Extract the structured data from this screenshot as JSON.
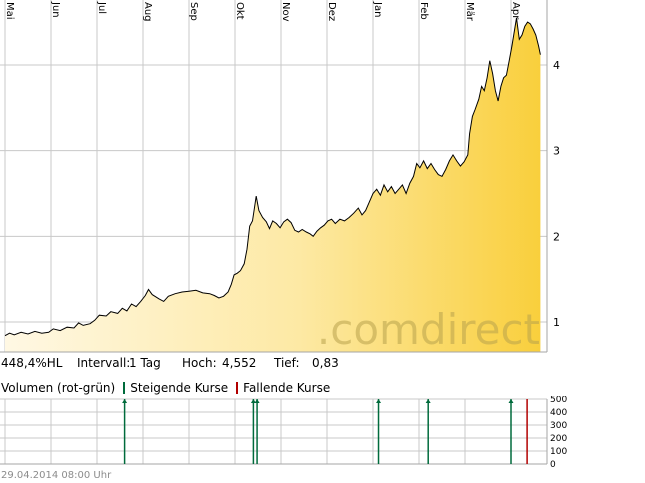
{
  "chart_data": [
    {
      "type": "area",
      "months": [
        "Mai",
        "Jun",
        "Jul",
        "Aug",
        "Sep",
        "Okt",
        "Nov",
        "Dez",
        "Jan",
        "Feb",
        "Mär",
        "Apr"
      ],
      "yticks": [
        "1",
        "2",
        "3",
        "4"
      ],
      "ylim": [
        0.65,
        4.7
      ],
      "series": [
        {
          "values": [
            [
              0,
              0.84
            ],
            [
              0.1,
              0.87
            ],
            [
              0.2,
              0.85
            ],
            [
              0.35,
              0.88
            ],
            [
              0.5,
              0.86
            ],
            [
              0.65,
              0.89
            ],
            [
              0.8,
              0.87
            ],
            [
              0.95,
              0.88
            ],
            [
              1.05,
              0.92
            ],
            [
              1.2,
              0.9
            ],
            [
              1.35,
              0.94
            ],
            [
              1.5,
              0.93
            ],
            [
              1.6,
              0.99
            ],
            [
              1.7,
              0.96
            ],
            [
              1.85,
              0.98
            ],
            [
              1.95,
              1.02
            ],
            [
              2.05,
              1.08
            ],
            [
              2.2,
              1.07
            ],
            [
              2.3,
              1.12
            ],
            [
              2.45,
              1.1
            ],
            [
              2.55,
              1.16
            ],
            [
              2.65,
              1.13
            ],
            [
              2.75,
              1.21
            ],
            [
              2.85,
              1.18
            ],
            [
              2.95,
              1.24
            ],
            [
              3.05,
              1.31
            ],
            [
              3.12,
              1.38
            ],
            [
              3.2,
              1.32
            ],
            [
              3.35,
              1.27
            ],
            [
              3.45,
              1.24
            ],
            [
              3.55,
              1.3
            ],
            [
              3.7,
              1.33
            ],
            [
              3.85,
              1.35
            ],
            [
              4.0,
              1.36
            ],
            [
              4.15,
              1.37
            ],
            [
              4.3,
              1.34
            ],
            [
              4.45,
              1.33
            ],
            [
              4.55,
              1.31
            ],
            [
              4.65,
              1.28
            ],
            [
              4.75,
              1.3
            ],
            [
              4.85,
              1.35
            ],
            [
              4.92,
              1.44
            ],
            [
              4.98,
              1.55
            ],
            [
              5.05,
              1.57
            ],
            [
              5.12,
              1.6
            ],
            [
              5.2,
              1.68
            ],
            [
              5.26,
              1.85
            ],
            [
              5.32,
              2.12
            ],
            [
              5.38,
              2.18
            ],
            [
              5.46,
              2.47
            ],
            [
              5.52,
              2.3
            ],
            [
              5.6,
              2.22
            ],
            [
              5.68,
              2.17
            ],
            [
              5.75,
              2.09
            ],
            [
              5.82,
              2.18
            ],
            [
              5.9,
              2.15
            ],
            [
              5.98,
              2.1
            ],
            [
              6.06,
              2.17
            ],
            [
              6.14,
              2.2
            ],
            [
              6.22,
              2.16
            ],
            [
              6.3,
              2.07
            ],
            [
              6.38,
              2.05
            ],
            [
              6.46,
              2.08
            ],
            [
              6.55,
              2.05
            ],
            [
              6.63,
              2.03
            ],
            [
              6.7,
              2.0
            ],
            [
              6.78,
              2.06
            ],
            [
              6.86,
              2.1
            ],
            [
              6.94,
              2.13
            ],
            [
              7.02,
              2.18
            ],
            [
              7.1,
              2.2
            ],
            [
              7.18,
              2.15
            ],
            [
              7.28,
              2.2
            ],
            [
              7.38,
              2.18
            ],
            [
              7.48,
              2.22
            ],
            [
              7.58,
              2.27
            ],
            [
              7.68,
              2.33
            ],
            [
              7.76,
              2.25
            ],
            [
              7.84,
              2.3
            ],
            [
              7.92,
              2.4
            ],
            [
              8.0,
              2.5
            ],
            [
              8.08,
              2.55
            ],
            [
              8.16,
              2.48
            ],
            [
              8.24,
              2.6
            ],
            [
              8.32,
              2.52
            ],
            [
              8.4,
              2.58
            ],
            [
              8.48,
              2.5
            ],
            [
              8.56,
              2.55
            ],
            [
              8.64,
              2.6
            ],
            [
              8.72,
              2.5
            ],
            [
              8.8,
              2.62
            ],
            [
              8.88,
              2.7
            ],
            [
              8.95,
              2.85
            ],
            [
              9.02,
              2.8
            ],
            [
              9.1,
              2.88
            ],
            [
              9.18,
              2.79
            ],
            [
              9.26,
              2.85
            ],
            [
              9.34,
              2.78
            ],
            [
              9.42,
              2.72
            ],
            [
              9.5,
              2.7
            ],
            [
              9.58,
              2.78
            ],
            [
              9.66,
              2.88
            ],
            [
              9.74,
              2.95
            ],
            [
              9.82,
              2.88
            ],
            [
              9.9,
              2.82
            ],
            [
              9.98,
              2.87
            ],
            [
              10.06,
              2.95
            ],
            [
              10.1,
              3.2
            ],
            [
              10.16,
              3.4
            ],
            [
              10.22,
              3.48
            ],
            [
              10.3,
              3.6
            ],
            [
              10.36,
              3.75
            ],
            [
              10.42,
              3.7
            ],
            [
              10.48,
              3.85
            ],
            [
              10.54,
              4.05
            ],
            [
              10.6,
              3.9
            ],
            [
              10.66,
              3.7
            ],
            [
              10.72,
              3.58
            ],
            [
              10.78,
              3.75
            ],
            [
              10.84,
              3.85
            ],
            [
              10.9,
              3.88
            ],
            [
              10.96,
              4.05
            ],
            [
              11.02,
              4.22
            ],
            [
              11.08,
              4.42
            ],
            [
              11.12,
              4.55
            ],
            [
              11.18,
              4.3
            ],
            [
              11.24,
              4.35
            ],
            [
              11.3,
              4.45
            ],
            [
              11.36,
              4.5
            ],
            [
              11.42,
              4.48
            ],
            [
              11.48,
              4.42
            ],
            [
              11.54,
              4.35
            ],
            [
              11.6,
              4.22
            ],
            [
              11.64,
              4.12
            ]
          ]
        }
      ]
    },
    {
      "type": "bar",
      "yticks": [
        "500",
        "400",
        "300",
        "200",
        "100",
        "0"
      ],
      "ylim": [
        0,
        500
      ],
      "series": [
        {
          "name": "Steigende Kurse",
          "color": "#006b3c",
          "values": [
            [
              2.6,
              500
            ],
            [
              5.4,
              500
            ],
            [
              5.48,
              500
            ],
            [
              8.12,
              500
            ],
            [
              9.2,
              500
            ],
            [
              11.0,
              500
            ]
          ]
        },
        {
          "name": "Fallende Kurse",
          "color": "#b20000",
          "values": [
            [
              11.35,
              500
            ]
          ]
        }
      ]
    }
  ],
  "stats": {
    "change": "448,4%HL",
    "interval_label": "Intervall:",
    "interval_value": "1 Tag",
    "high_label": "Hoch:",
    "high_value": "4,552",
    "low_label": "Tief:",
    "low_value": "0,83"
  },
  "volume_legend": {
    "title": "Volumen (rot-grün)",
    "rising": "Steigende Kurse",
    "falling": "Fallende Kurse"
  },
  "watermark": ".comdirect",
  "timestamp": "29.04.2014 08:00 Uhr",
  "colors": {
    "fill_light": "#fff6dc",
    "fill_dark": "#f9cf3c",
    "rising": "#006b3c",
    "falling": "#b20000"
  }
}
